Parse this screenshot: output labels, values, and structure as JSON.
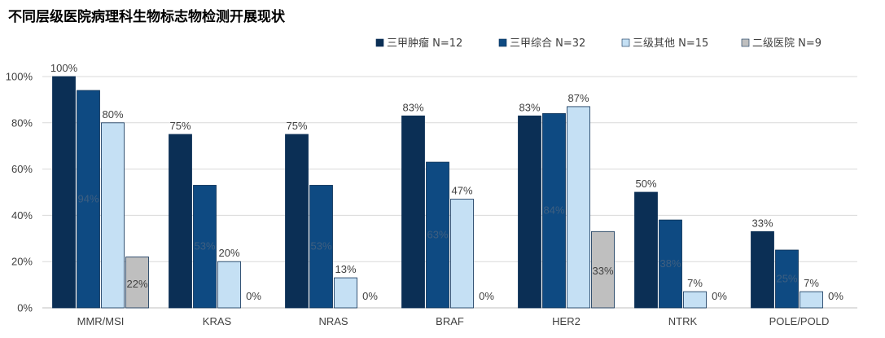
{
  "chart_data": {
    "type": "bar",
    "title": "不同层级医院病理科生物标志物检测开展现状",
    "categories": [
      "MMR/MSI",
      "KRAS",
      "NRAS",
      "BRAF",
      "HER2",
      "NTRK",
      "POLE/POLD"
    ],
    "ylim": [
      0,
      100
    ],
    "yticks": [
      "0%",
      "20%",
      "40%",
      "60%",
      "80%",
      "100%"
    ],
    "grid": true,
    "legend_position": "top-right",
    "series": [
      {
        "name": "三甲肿瘤 N=12",
        "color": "#0b2f55",
        "values": [
          100,
          75,
          75,
          83,
          83,
          50,
          33
        ],
        "labels": [
          "100%",
          "75%",
          "75%",
          "83%",
          "83%",
          "50%",
          "33%"
        ]
      },
      {
        "name": "三甲综合 N=32",
        "color": "#0e4a82",
        "values": [
          94,
          53,
          53,
          63,
          84,
          38,
          25
        ],
        "labels": [
          "94%",
          "53%",
          "53%",
          "63%",
          "84%",
          "38%",
          "25%"
        ]
      },
      {
        "name": "三级其他 N=15",
        "color": "#c5e0f4",
        "values": [
          80,
          20,
          13,
          47,
          87,
          7,
          7
        ],
        "labels": [
          "80%",
          "20%",
          "13%",
          "47%",
          "87%",
          "7%",
          "7%"
        ]
      },
      {
        "name": "二级医院 N=9",
        "color": "#bfbfbf",
        "values": [
          22,
          0,
          0,
          0,
          33,
          0,
          0
        ],
        "labels": [
          "22%",
          "0%",
          "0%",
          "0%",
          "33%",
          "0%",
          "0%"
        ]
      }
    ]
  }
}
